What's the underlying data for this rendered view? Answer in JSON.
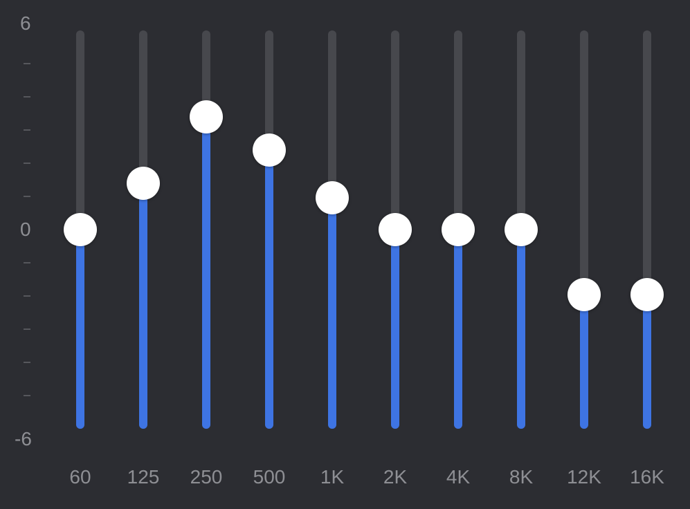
{
  "equalizer": {
    "scale": {
      "max_label": "6",
      "zero_label": "0",
      "min_label": "-6",
      "max": 6,
      "min": -6,
      "tick_step": 1
    },
    "colors": {
      "background": "#2c2d32",
      "track": "#47484d",
      "fill": "#3e74e3",
      "knob": "#ffffff",
      "label": "#8e8f94"
    },
    "bands": [
      {
        "label": "60",
        "gain": 0
      },
      {
        "label": "125",
        "gain": 1.4
      },
      {
        "label": "250",
        "gain": 3.4
      },
      {
        "label": "500",
        "gain": 2.4
      },
      {
        "label": "1K",
        "gain": 0.95
      },
      {
        "label": "2K",
        "gain": 0
      },
      {
        "label": "4K",
        "gain": 0
      },
      {
        "label": "8K",
        "gain": 0
      },
      {
        "label": "12K",
        "gain": -1.95
      },
      {
        "label": "16K",
        "gain": -1.95
      }
    ]
  }
}
